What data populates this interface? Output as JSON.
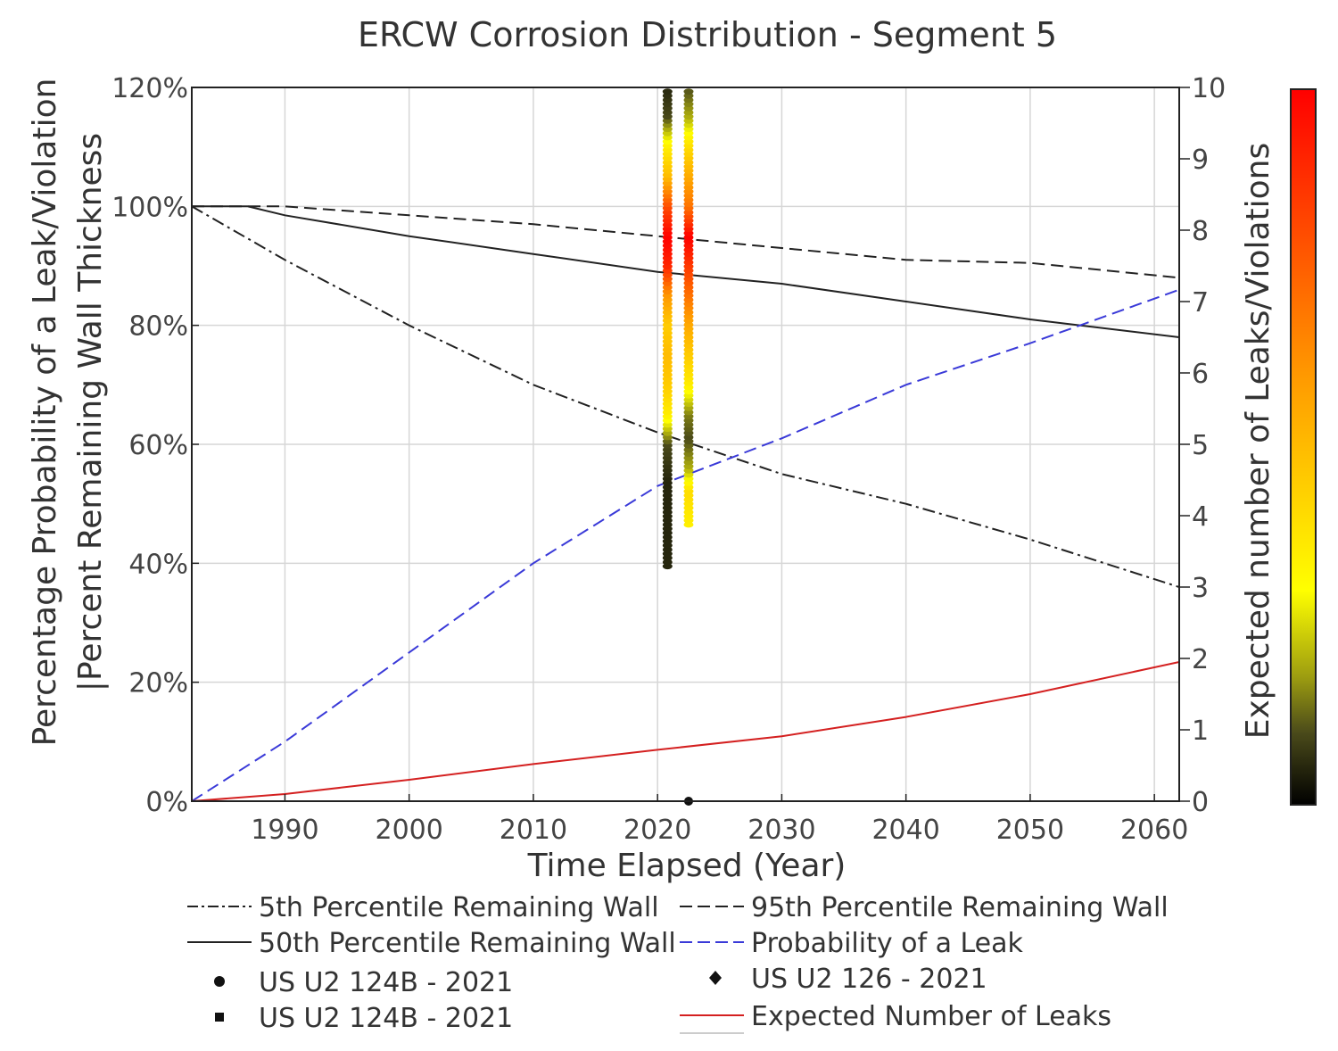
{
  "chart_data": {
    "type": "line",
    "title": "ERCW Corrosion Distribution - Segment 5",
    "xlabel": "Time Elapsed (Year)",
    "ylabel_line1": "Percentage Probability of a Leak/Violation",
    "ylabel_line2": "|Percent Remaining Wall Thickness",
    "y2label": "Expected number of Leaks/Violations",
    "xlim": [
      1982.5,
      2062
    ],
    "ylim": [
      0,
      120
    ],
    "y2lim": [
      0,
      10
    ],
    "x_ticks": [
      1990,
      2000,
      2010,
      2020,
      2030,
      2040,
      2050,
      2060
    ],
    "y_ticks": [
      0,
      20,
      40,
      60,
      80,
      100,
      120
    ],
    "y_tick_labels": [
      "0%",
      "20%",
      "40%",
      "60%",
      "80%",
      "100%",
      "120%"
    ],
    "y2_ticks": [
      0,
      1,
      2,
      3,
      4,
      5,
      6,
      7,
      8,
      9,
      10
    ],
    "y2_tick_labels": [
      "0",
      "1",
      "2",
      "3",
      "4",
      "5",
      "6",
      "7",
      "8",
      "9",
      "10"
    ],
    "grid": true,
    "colorbar": {
      "label": "Expected number of Leaks/Violations",
      "colors": [
        "#000000",
        "#4a4a1a",
        "#9e9e10",
        "#ffff00",
        "#ff9900",
        "#ff4400",
        "#ff0000"
      ]
    },
    "series": [
      {
        "name": "5th Percentile Remaining Wall",
        "axis": "left",
        "style": "dashdot",
        "color": "#222222",
        "x": [
          1982.5,
          1990,
          2000,
          2010,
          2020,
          2030,
          2040,
          2050,
          2062
        ],
        "y": [
          100,
          91,
          80,
          70,
          62,
          55,
          50,
          44,
          36
        ]
      },
      {
        "name": "95th Percentile Remaining Wall",
        "axis": "left",
        "style": "dashed",
        "color": "#222222",
        "x": [
          1982.5,
          1987,
          1990,
          2000,
          2010,
          2020,
          2030,
          2040,
          2050,
          2062
        ],
        "y": [
          100,
          100,
          100,
          98.5,
          97,
          95,
          93,
          91,
          90.5,
          88
        ]
      },
      {
        "name": "50th Percentile Remaining Wall",
        "axis": "left",
        "style": "solid",
        "color": "#222222",
        "x": [
          1982.5,
          1987,
          1990,
          2000,
          2010,
          2020,
          2030,
          2040,
          2050,
          2062
        ],
        "y": [
          100,
          100,
          98.5,
          95,
          92,
          89,
          87,
          84,
          81,
          78
        ]
      },
      {
        "name": "Probability of a Leak",
        "axis": "left",
        "style": "dashed",
        "color": "#3a3ad8",
        "x": [
          1982.5,
          1990,
          2000,
          2010,
          2020,
          2030,
          2040,
          2050,
          2062
        ],
        "y": [
          0,
          10,
          25,
          40,
          53,
          61,
          70,
          77,
          86
        ]
      },
      {
        "name": "Expected Number of Leaks",
        "axis": "right",
        "style": "solid",
        "color": "#d42020",
        "x": [
          1982.5,
          1990,
          2000,
          2010,
          2020,
          2030,
          2040,
          2050,
          2062
        ],
        "y": [
          0,
          0.1,
          0.3,
          0.52,
          0.72,
          0.91,
          1.18,
          1.5,
          1.95
        ]
      }
    ],
    "scatter_columns": [
      {
        "name": "US U2 124B - 2021",
        "x": 2020.8,
        "y_min": 39.5,
        "y_max": 120,
        "profile": [
          [
            40,
            0.05
          ],
          [
            47,
            0.05
          ],
          [
            54,
            0.05
          ],
          [
            60,
            0.1
          ],
          [
            65,
            0.35
          ],
          [
            70,
            0.45
          ],
          [
            75,
            0.5
          ],
          [
            80,
            0.45
          ],
          [
            85,
            0.6
          ],
          [
            90,
            0.9
          ],
          [
            95,
            1.0
          ],
          [
            100,
            0.8
          ],
          [
            105,
            0.5
          ],
          [
            110,
            0.35
          ],
          [
            115,
            0.1
          ],
          [
            120,
            0.05
          ]
        ]
      },
      {
        "name": "US U2 126 - 2021",
        "x": 2022.5,
        "y_min": 46.5,
        "y_max": 120,
        "profile": [
          [
            47,
            0.35
          ],
          [
            52,
            0.4
          ],
          [
            56,
            0.2
          ],
          [
            61,
            0.1
          ],
          [
            65,
            0.15
          ],
          [
            70,
            0.35
          ],
          [
            75,
            0.45
          ],
          [
            80,
            0.55
          ],
          [
            85,
            0.7
          ],
          [
            90,
            0.85
          ],
          [
            95,
            1.0
          ],
          [
            100,
            0.7
          ],
          [
            105,
            0.55
          ],
          [
            110,
            0.4
          ],
          [
            115,
            0.2
          ],
          [
            120,
            0.1
          ]
        ]
      }
    ],
    "legend": [
      {
        "label": "5th Percentile Remaining Wall",
        "marker": "dashdot"
      },
      {
        "label": "95th Percentile Remaining Wall",
        "marker": "dashed"
      },
      {
        "label": "50th Percentile Remaining Wall",
        "marker": "solid"
      },
      {
        "label": "Probability of a Leak",
        "marker": "dashed-blue"
      },
      {
        "label": "US U2 124B - 2021",
        "marker": "circle"
      },
      {
        "label": "US U2 126 - 2021",
        "marker": "diamond"
      },
      {
        "label": "US U2 124B - 2021",
        "marker": "square"
      },
      {
        "label": "Expected Number of Leaks",
        "marker": "solid-red"
      }
    ]
  }
}
